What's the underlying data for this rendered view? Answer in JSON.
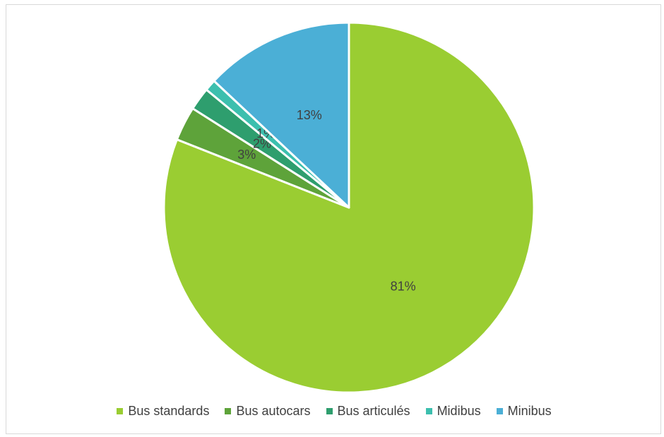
{
  "chart_data": {
    "type": "pie",
    "title": "",
    "start_angle_deg": 0,
    "direction": "clockwise",
    "slices": [
      {
        "name": "Bus standards",
        "value": 81,
        "label": "81%",
        "color": "#9acd32"
      },
      {
        "name": "Bus autocars",
        "value": 3,
        "label": "3%",
        "color": "#5ea33a"
      },
      {
        "name": "Bus articulés",
        "value": 2,
        "label": "2%",
        "color": "#2e9e6e"
      },
      {
        "name": "Midibus",
        "value": 1,
        "label": "1%",
        "color": "#3cbfae"
      },
      {
        "name": "Minibus",
        "value": 13,
        "label": "13%",
        "color": "#4bafd6"
      }
    ],
    "legend_position": "bottom"
  },
  "legend": {
    "items": [
      {
        "label": "Bus standards",
        "color": "#9acd32"
      },
      {
        "label": "Bus autocars",
        "color": "#5ea33a"
      },
      {
        "label": "Bus articulés",
        "color": "#2e9e6e"
      },
      {
        "label": "Midibus",
        "color": "#3cbfae"
      },
      {
        "label": "Minibus",
        "color": "#4bafd6"
      }
    ]
  }
}
